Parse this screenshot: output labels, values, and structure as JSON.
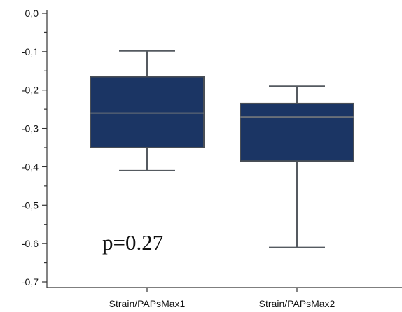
{
  "chart_data": {
    "type": "box",
    "title": "",
    "xlabel": "",
    "ylabel": "",
    "ylim": [
      -0.7,
      0.0
    ],
    "y_tick_labels": [
      "0,0",
      "-0,1",
      "-0,2",
      "-0,3",
      "-0,4",
      "-0,5",
      "-0,6",
      "-0,7"
    ],
    "y_ticks": [
      0.0,
      -0.1,
      -0.2,
      -0.3,
      -0.4,
      -0.5,
      -0.6,
      -0.7
    ],
    "y_minor_step": 0.05,
    "categories": [
      "Strain/PAPsMax1",
      "Strain/PAPsMax2"
    ],
    "boxes": [
      {
        "min": -0.41,
        "q1": -0.35,
        "median": -0.26,
        "q3": -0.165,
        "max": -0.098
      },
      {
        "min": -0.61,
        "q1": -0.385,
        "median": -0.27,
        "q3": -0.235,
        "max": -0.19
      }
    ],
    "box_color": "#1b3564",
    "annotation": "p=0.27",
    "grid": false,
    "legend": "none"
  }
}
